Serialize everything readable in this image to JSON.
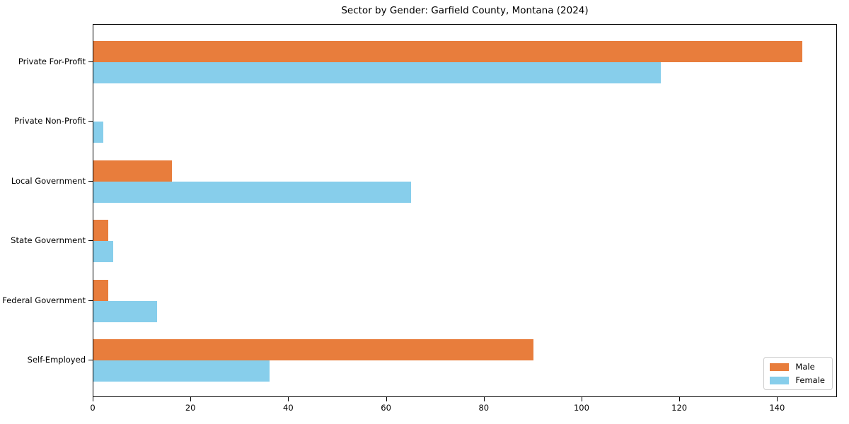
{
  "title": "Sector by Gender: Garfield County, Montana (2024)",
  "chart_data": {
    "type": "bar",
    "orientation": "horizontal",
    "title": "Sector by Gender: Garfield County, Montana (2024)",
    "categories": [
      "Private For-Profit",
      "Private Non-Profit",
      "Local Government",
      "State Government",
      "Federal Government",
      "Self-Employed"
    ],
    "series": [
      {
        "name": "Male",
        "color": "#e87d3c",
        "values": [
          145,
          0,
          16,
          3,
          3,
          90
        ]
      },
      {
        "name": "Female",
        "color": "#87ceeb",
        "values": [
          116,
          2,
          65,
          4,
          13,
          36
        ]
      }
    ],
    "xlabel": "",
    "ylabel": "",
    "xlim": [
      0,
      152.25
    ],
    "xticks": [
      0,
      20,
      40,
      60,
      80,
      100,
      120,
      140
    ],
    "grid": false,
    "legend": {
      "position": "lower right",
      "entries": [
        "Male",
        "Female"
      ]
    }
  }
}
